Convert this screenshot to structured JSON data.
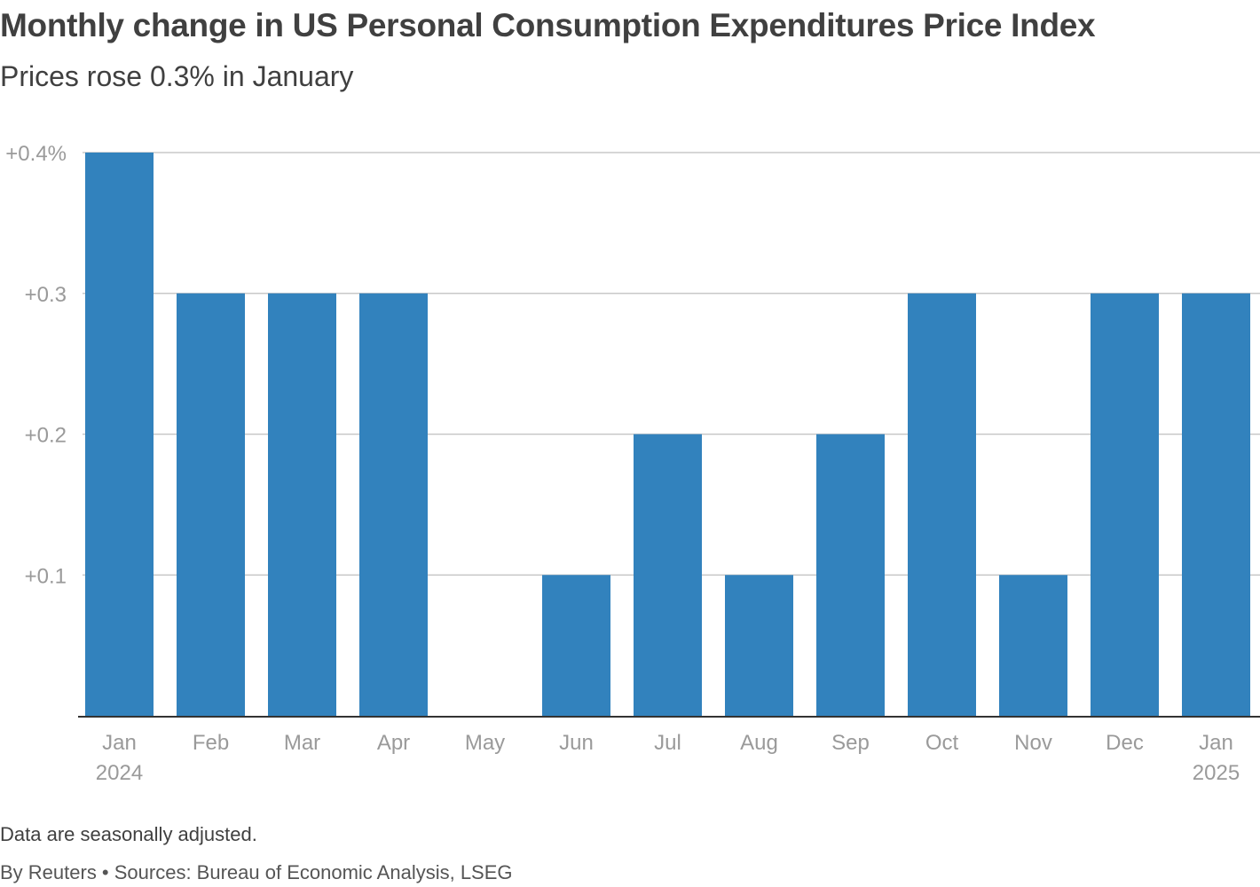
{
  "header": {
    "title": "Monthly change in US Personal Consumption Expenditures Price Index",
    "subtitle": "Prices rose 0.3% in January"
  },
  "footer": {
    "note": "Data are seasonally adjusted.",
    "source": "By Reuters • Sources: Bureau of Economic Analysis, LSEG"
  },
  "colors": {
    "bar": "#3282bd",
    "grid": "#c8c8c8",
    "axis": "#333333",
    "tick_text": "#9a9a9a",
    "title_text": "#404040"
  },
  "chart_data": {
    "type": "bar",
    "title": "Monthly change in US Personal Consumption Expenditures Price Index",
    "subtitle": "Prices rose 0.3% in January",
    "xlabel": "",
    "ylabel": "",
    "ylim": [
      0,
      0.4
    ],
    "grid": true,
    "categories": [
      "Jan 2024",
      "Feb",
      "Mar",
      "Apr",
      "May",
      "Jun",
      "Jul",
      "Aug",
      "Sep",
      "Oct",
      "Nov",
      "Dec",
      "Jan 2025"
    ],
    "category_labels": [
      [
        "Jan",
        "2024"
      ],
      [
        "Feb"
      ],
      [
        "Mar"
      ],
      [
        "Apr"
      ],
      [
        "May"
      ],
      [
        "Jun"
      ],
      [
        "Jul"
      ],
      [
        "Aug"
      ],
      [
        "Sep"
      ],
      [
        "Oct"
      ],
      [
        "Nov"
      ],
      [
        "Dec"
      ],
      [
        "Jan",
        "2025"
      ]
    ],
    "values": [
      0.4,
      0.3,
      0.3,
      0.3,
      0.0,
      0.1,
      0.2,
      0.1,
      0.2,
      0.3,
      0.1,
      0.3,
      0.3
    ],
    "y_ticks": [
      {
        "value": 0.4,
        "label": "+0.4%"
      },
      {
        "value": 0.3,
        "label": "+0.3"
      },
      {
        "value": 0.2,
        "label": "+0.2"
      },
      {
        "value": 0.1,
        "label": "+0.1"
      }
    ]
  }
}
